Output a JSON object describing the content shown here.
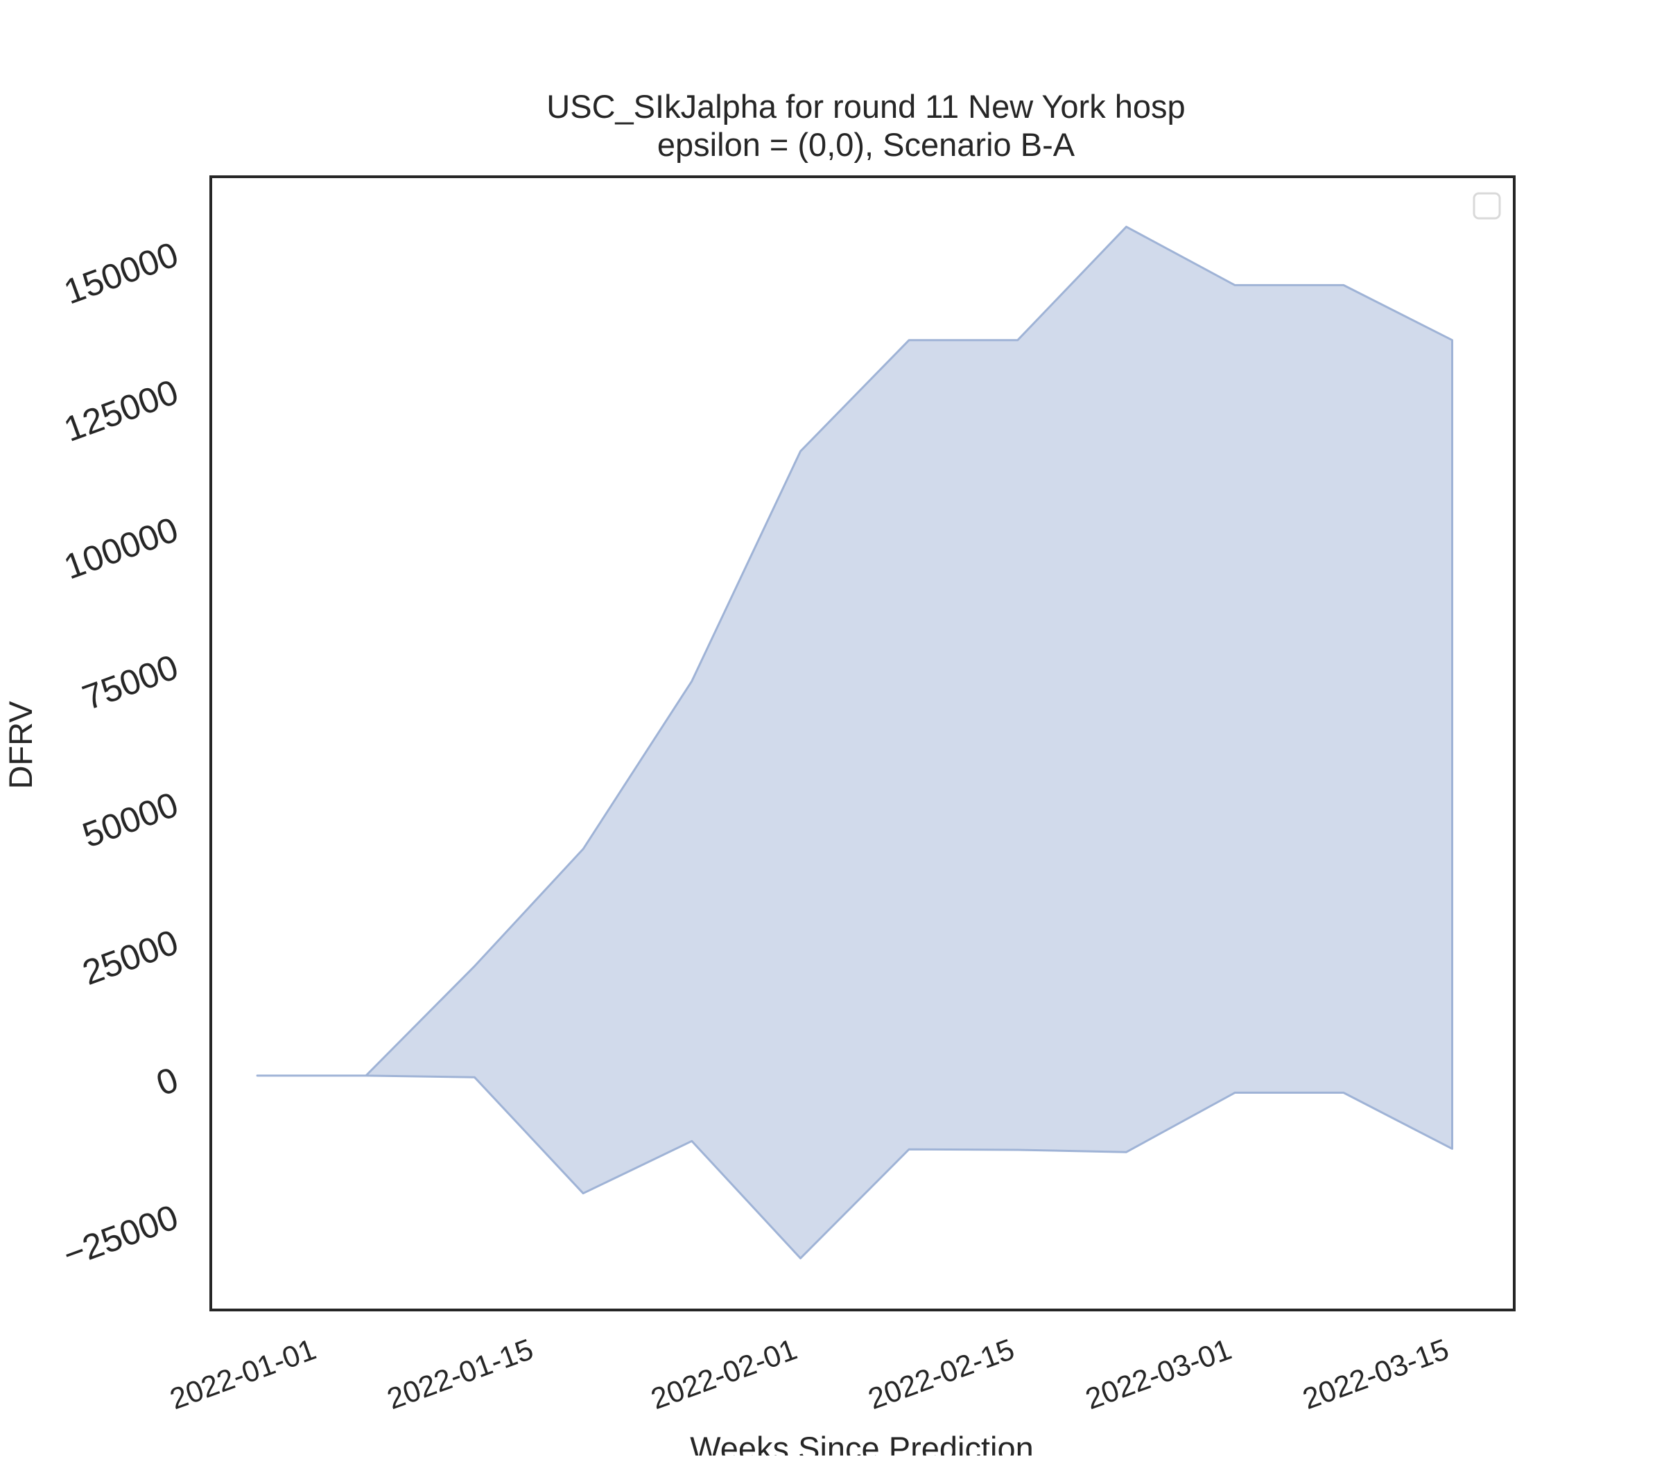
{
  "chart_data": {
    "type": "area",
    "title_line1": "USC_SIkJalpha for round 11 New York hosp",
    "title_line2": "epsilon = (0,0), Scenario B-A",
    "xlabel": "Weeks Since Prediction",
    "ylabel": "DFRV",
    "xlim": [
      "2021-12-26",
      "2022-03-20"
    ],
    "ylim": [
      -42000,
      164000
    ],
    "x_ticks": [
      "2022-01-01",
      "2022-01-15",
      "2022-02-01",
      "2022-02-15",
      "2022-03-01",
      "2022-03-15"
    ],
    "y_ticks": [
      -25000,
      0,
      25000,
      50000,
      75000,
      100000,
      125000,
      150000
    ],
    "y_tick_labels": [
      "−25000",
      "0",
      "25000",
      "50000",
      "75000",
      "100000",
      "125000",
      "150000"
    ],
    "fill_color": "#b8c6e0",
    "fill_opacity": 0.65,
    "edge_color": "#9fb3d6",
    "legend": {
      "location": "upper right",
      "entries": []
    },
    "grid": false,
    "series": [
      {
        "x": [
          "2021-12-29",
          "2022-01-05",
          "2022-01-12",
          "2022-01-19",
          "2022-01-26",
          "2022-02-02",
          "2022-02-09",
          "2022-02-16",
          "2022-02-23",
          "2022-03-02",
          "2022-03-09",
          "2022-03-16"
        ],
        "lower": [
          600,
          600,
          300,
          -20800,
          -11300,
          -32600,
          -12800,
          -12900,
          -13300,
          -2500,
          -2500,
          -12700
        ],
        "upper": [
          600,
          600,
          20500,
          41800,
          72300,
          114100,
          134300,
          134300,
          154900,
          144300,
          144300,
          134300
        ]
      }
    ]
  }
}
